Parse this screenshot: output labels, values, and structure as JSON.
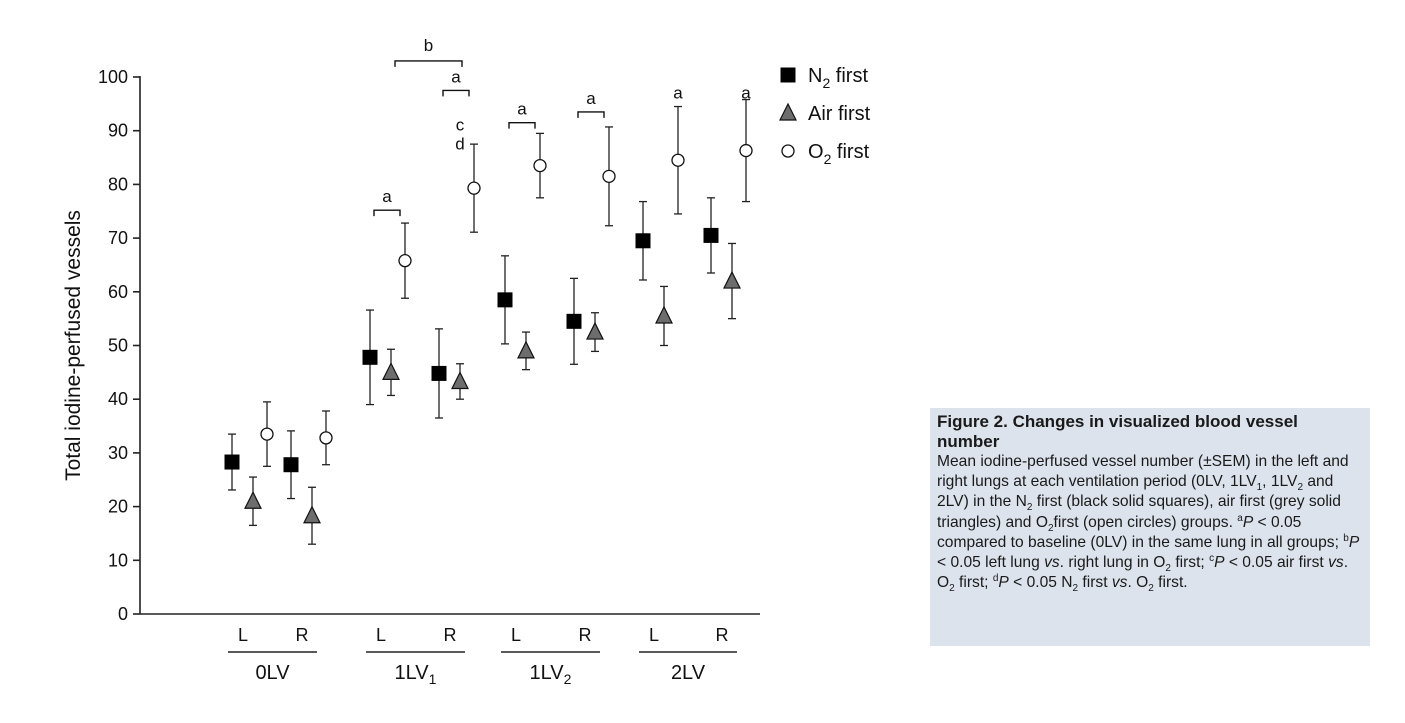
{
  "chart_data": {
    "type": "scatter",
    "ylabel": "Total iodine-perfused vessels",
    "ylim": [
      0,
      100
    ],
    "yticks": [
      0,
      10,
      20,
      30,
      40,
      50,
      60,
      70,
      80,
      90,
      100
    ],
    "groups": [
      {
        "label": "0LV",
        "sub": ""
      },
      {
        "label": "1LV",
        "sub": "1"
      },
      {
        "label": "1LV",
        "sub": "2"
      },
      {
        "label": "2LV",
        "sub": ""
      }
    ],
    "categories": [
      "L",
      "R",
      "L",
      "R",
      "L",
      "R",
      "L",
      "R"
    ],
    "series": [
      {
        "name": "N",
        "name_sub": "2",
        "name_rest": " first",
        "marker": "square",
        "color": "#000000",
        "values": [
          28.3,
          27.8,
          47.8,
          44.8,
          58.5,
          54.5,
          69.5,
          70.5
        ],
        "errors": [
          5.2,
          6.3,
          8.8,
          8.3,
          8.2,
          8.0,
          7.3,
          7.0
        ]
      },
      {
        "name": "Air first",
        "marker": "triangle",
        "color": "#6d6d6d",
        "values": [
          21.0,
          18.3,
          45.0,
          43.3,
          49.0,
          52.5,
          55.5,
          62.0
        ],
        "errors": [
          4.5,
          5.3,
          4.3,
          3.3,
          3.5,
          3.6,
          5.5,
          7.0
        ]
      },
      {
        "name": "O",
        "name_sub": "2",
        "name_rest": " first",
        "marker": "circle",
        "color": "#ffffff",
        "values": [
          33.5,
          32.8,
          65.8,
          79.3,
          83.5,
          81.5,
          84.5,
          86.3
        ],
        "errors": [
          6.0,
          5.0,
          7.0,
          8.2,
          6.0,
          9.2,
          10.0,
          9.5
        ]
      }
    ],
    "significance": [
      {
        "text": "a",
        "type": "bracket",
        "category": 2,
        "y": 75.2
      },
      {
        "text": "a",
        "type": "bracket",
        "category": 3,
        "y": 97.5
      },
      {
        "text": "b",
        "type": "bracket-span",
        "from": 2,
        "to": 3,
        "y": 103
      },
      {
        "text": "c",
        "type": "stack",
        "category": 3,
        "y": 90
      },
      {
        "text": "d",
        "type": "stack",
        "category": 3,
        "y": 86.5
      },
      {
        "text": "a",
        "type": "bracket",
        "category": 4,
        "y": 91.5
      },
      {
        "text": "a",
        "type": "bracket",
        "category": 5,
        "y": 93.5
      },
      {
        "text": "a",
        "type": "label",
        "category": 6,
        "y": 96
      },
      {
        "text": "a",
        "type": "label",
        "category": 7,
        "y": 96
      }
    ],
    "legend_position": "top-right"
  },
  "caption": {
    "title": "Figure 2.  Changes in visualized blood vessel number",
    "body_html": "Mean iodine-perfused vessel number (±SEM) in the left and right lungs at each ventilation period (0LV, 1LV<sub>1</sub>, 1LV<sub>2</sub> and 2LV) in the N<sub>2</sub> first (black solid squares), air first (grey solid triangles) and O<sub>2</sub>first (open circles) groups. <sup>a</sup><i>P</i> &lt; 0.05 compared to baseline (0LV) in the same lung in all groups; <sup>b</sup><i>P</i> &lt; 0.05 left lung <i>vs</i>. right lung in O<sub>2</sub> first; <sup>c</sup><i>P</i> &lt; 0.05 air first <i>vs</i>. O<sub>2</sub> first; <sup>d</sup><i>P</i> &lt; 0.05 N<sub>2</sub> first <i>vs</i>. O<sub>2</sub> first."
  }
}
